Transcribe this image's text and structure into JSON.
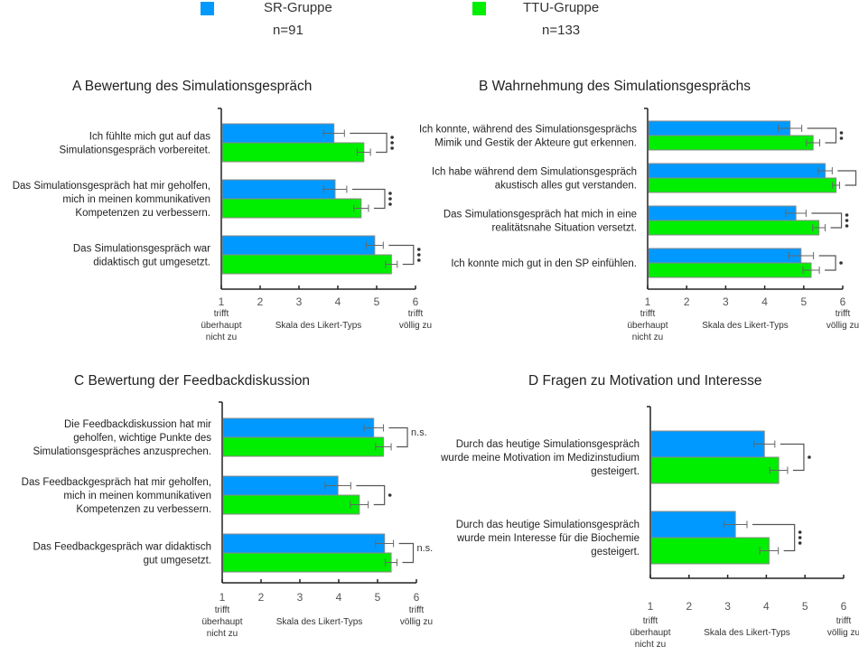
{
  "legend": [
    {
      "label": "SR-Gruppe",
      "n": "n=91",
      "color": "#0099ff"
    },
    {
      "label": "TTU-Gruppe",
      "n": "n=133",
      "color": "#00ee00"
    }
  ],
  "axis": {
    "ticks": [
      "1",
      "2",
      "3",
      "4",
      "5",
      "6"
    ],
    "left_anchor": [
      "trifft",
      "überhaupt",
      "nicht zu"
    ],
    "right_anchor": [
      "trifft",
      "völlig zu"
    ],
    "label": "Skala des Likert-Typs"
  },
  "chart_data": [
    {
      "type": "bar",
      "orientation": "horizontal",
      "panel": "A",
      "title": "A   Bewertung des Simulationsgespräch",
      "xlim": [
        1,
        6
      ],
      "xlabel": "Skala des Likert-Typs",
      "categories": [
        [
          "Ich fühlte mich gut auf das",
          "Simulationsgespräch vorbereitet."
        ],
        [
          "Das Simulationsgespräch hat mir geholfen,",
          "mich in meinen kommunikativen",
          "Kompetenzen zu verbessern."
        ],
        [
          "Das Simulationsgespräch war",
          "didaktisch gut umgesetzt."
        ]
      ],
      "series": [
        {
          "name": "SR-Gruppe",
          "values": [
            3.9,
            3.93,
            4.95
          ],
          "errors": [
            0.27,
            0.3,
            0.22
          ]
        },
        {
          "name": "TTU-Gruppe",
          "values": [
            4.67,
            4.6,
            5.38
          ],
          "errors": [
            0.17,
            0.19,
            0.15
          ]
        }
      ],
      "significance": [
        "***",
        "***",
        "***"
      ]
    },
    {
      "type": "bar",
      "orientation": "horizontal",
      "panel": "B",
      "title": "B   Wahrnehmung des Simulationsgesprächs",
      "xlim": [
        1,
        6
      ],
      "xlabel": "Skala des Likert-Typs",
      "categories": [
        [
          "Ich konnte, während des Simulationsgesprächs",
          "Mimik und Gestik der Akteure gut erkennen."
        ],
        [
          "Ich habe während dem Simulationsgespräch",
          "akustisch alles gut verstanden."
        ],
        [
          "Das Simulationsgespräch hat mich in eine",
          "realitätsnahe Situation versetzt."
        ],
        [
          "Ich konnte mich gut in den SP einfühlen."
        ]
      ],
      "series": [
        {
          "name": "SR-Gruppe",
          "values": [
            4.65,
            5.55,
            4.8,
            4.93
          ],
          "errors": [
            0.3,
            0.18,
            0.26,
            0.32
          ]
        },
        {
          "name": "TTU-Gruppe",
          "values": [
            5.24,
            5.83,
            5.39,
            5.19
          ],
          "errors": [
            0.17,
            0.09,
            0.16,
            0.21
          ]
        }
      ],
      "significance": [
        "**",
        "*",
        "***",
        "*"
      ]
    },
    {
      "type": "bar",
      "orientation": "horizontal",
      "panel": "C",
      "title": "C   Bewertung der Feedbackdiskussion",
      "xlim": [
        1,
        6
      ],
      "xlabel": "Skala des Likert-Typs",
      "categories": [
        [
          "Die Feedbackdiskussion hat mir",
          "geholfen, wichtige Punkte des",
          "Simulationsgespräches anzusprechen."
        ],
        [
          "Das Feedbackgespräch hat mir geholfen,",
          "mich in meinen kommunikativen",
          "Kompetenzen zu verbessern."
        ],
        [
          "Das Feedbackgespräch war didaktisch",
          "gut umgesetzt."
        ]
      ],
      "series": [
        {
          "name": "SR-Gruppe",
          "values": [
            4.9,
            3.98,
            5.18
          ],
          "errors": [
            0.25,
            0.33,
            0.23
          ]
        },
        {
          "name": "TTU-Gruppe",
          "values": [
            5.15,
            4.53,
            5.35
          ],
          "errors": [
            0.2,
            0.23,
            0.15
          ]
        }
      ],
      "significance": [
        "n.s.",
        "*",
        "n.s."
      ]
    },
    {
      "type": "bar",
      "orientation": "horizontal",
      "panel": "D",
      "title": "D   Fragen zu Motivation und Interesse",
      "xlim": [
        1,
        6
      ],
      "xlabel": "Skala des Likert-Typs",
      "categories": [
        [
          "Durch das heutige Simulationsgespräch",
          "wurde meine Motivation im Medizinstudium",
          "gesteigert."
        ],
        [
          "Durch das heutige Simulationsgespräch",
          "wurde mein Interesse für die Biochemie",
          "gesteigert."
        ]
      ],
      "series": [
        {
          "name": "SR-Gruppe",
          "values": [
            3.95,
            3.2
          ],
          "errors": [
            0.27,
            0.3
          ]
        },
        {
          "name": "TTU-Gruppe",
          "values": [
            4.32,
            4.07
          ],
          "errors": [
            0.23,
            0.24
          ]
        }
      ],
      "significance": [
        "*",
        "***"
      ]
    }
  ]
}
